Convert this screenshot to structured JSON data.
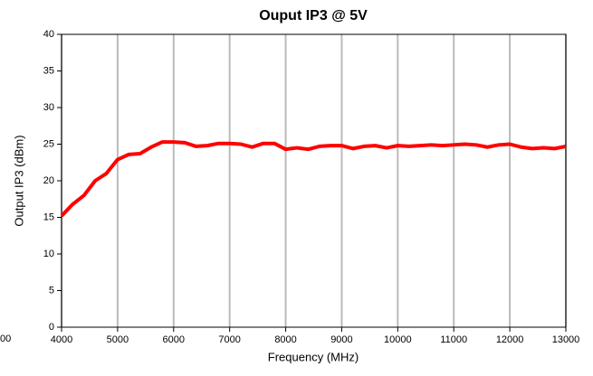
{
  "chart_data": {
    "type": "line",
    "title": "Ouput IP3 @ 5V",
    "x_label": "Frequency (MHz)",
    "y_label": "Output IP3 (dBm)",
    "annotation": "00",
    "x": [
      4000,
      4200,
      4400,
      4600,
      4800,
      5000,
      5200,
      5400,
      5600,
      5800,
      6000,
      6200,
      6400,
      6600,
      6800,
      7000,
      7200,
      7400,
      7600,
      7800,
      8000,
      8200,
      8400,
      8600,
      8800,
      9000,
      9200,
      9400,
      9600,
      9800,
      10000,
      10200,
      10400,
      10600,
      10800,
      11000,
      11200,
      11400,
      11600,
      11800,
      12000,
      12200,
      12400,
      12600,
      12800,
      13000
    ],
    "series": [
      {
        "name": "Output IP3",
        "color": "#ff0000",
        "values": [
          15.2,
          16.8,
          18,
          20,
          21,
          22.9,
          23.6,
          23.7,
          24.6,
          25.3,
          25.3,
          25.2,
          24.7,
          24.8,
          25.1,
          25.1,
          25,
          24.6,
          25.1,
          25.1,
          24.3,
          24.5,
          24.3,
          24.7,
          24.8,
          24.8,
          24.4,
          24.7,
          24.8,
          24.5,
          24.8,
          24.7,
          24.8,
          24.9,
          24.8,
          24.9,
          25,
          24.9,
          24.6,
          24.9,
          25,
          24.6,
          24.4,
          24.5,
          24.4,
          24.7
        ]
      }
    ],
    "xlim": [
      4000,
      13000
    ],
    "xticks": [
      4000,
      5000,
      6000,
      7000,
      8000,
      9000,
      10000,
      11000,
      12000,
      13000
    ],
    "ylim": [
      0,
      40
    ],
    "yticks": [
      0,
      5,
      10,
      15,
      20,
      25,
      30,
      35,
      40
    ],
    "grid_x": true,
    "grid_y": false
  }
}
